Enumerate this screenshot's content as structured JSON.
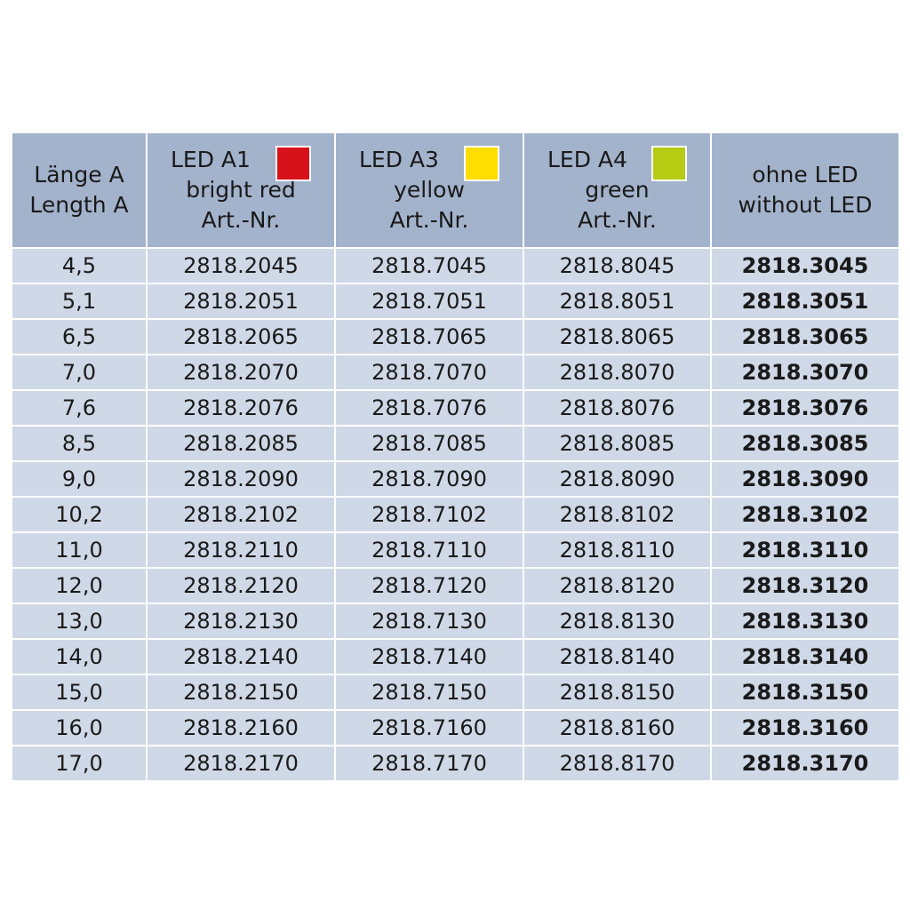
{
  "header": [
    {
      "lines": [
        "Länge A",
        "Length A"
      ]
    },
    {
      "lines": [
        "LED A1",
        "bright red",
        "Art.-Nr."
      ],
      "swatch": "#d8121b"
    },
    {
      "lines": [
        "LED A3",
        "yellow",
        "Art.-Nr."
      ],
      "swatch": "#fedd00"
    },
    {
      "lines": [
        "LED A4",
        "green",
        "Art.-Nr."
      ],
      "swatch": "#b5cc12"
    },
    {
      "lines": [
        "ohne LED",
        "without LED"
      ]
    }
  ],
  "rows": [
    [
      "4,5",
      "2818.2045",
      "2818.7045",
      "2818.8045",
      "2818.3045"
    ],
    [
      "5,1",
      "2818.2051",
      "2818.7051",
      "2818.8051",
      "2818.3051"
    ],
    [
      "6,5",
      "2818.2065",
      "2818.7065",
      "2818.8065",
      "2818.3065"
    ],
    [
      "7,0",
      "2818.2070",
      "2818.7070",
      "2818.8070",
      "2818.3070"
    ],
    [
      "7,6",
      "2818.2076",
      "2818.7076",
      "2818.8076",
      "2818.3076"
    ],
    [
      "8,5",
      "2818.2085",
      "2818.7085",
      "2818.8085",
      "2818.3085"
    ],
    [
      "9,0",
      "2818.2090",
      "2818.7090",
      "2818.8090",
      "2818.3090"
    ],
    [
      "10,2",
      "2818.2102",
      "2818.7102",
      "2818.8102",
      "2818.3102"
    ],
    [
      "11,0",
      "2818.2110",
      "2818.7110",
      "2818.8110",
      "2818.3110"
    ],
    [
      "12,0",
      "2818.2120",
      "2818.7120",
      "2818.8120",
      "2818.3120"
    ],
    [
      "13,0",
      "2818.2130",
      "2818.7130",
      "2818.8130",
      "2818.3130"
    ],
    [
      "14,0",
      "2818.2140",
      "2818.7140",
      "2818.8140",
      "2818.3140"
    ],
    [
      "15,0",
      "2818.2150",
      "2818.7150",
      "2818.8150",
      "2818.3150"
    ],
    [
      "16,0",
      "2818.2160",
      "2818.7160",
      "2818.8160",
      "2818.3160"
    ],
    [
      "17,0",
      "2818.2170",
      "2818.7170",
      "2818.8170",
      "2818.3170"
    ]
  ]
}
